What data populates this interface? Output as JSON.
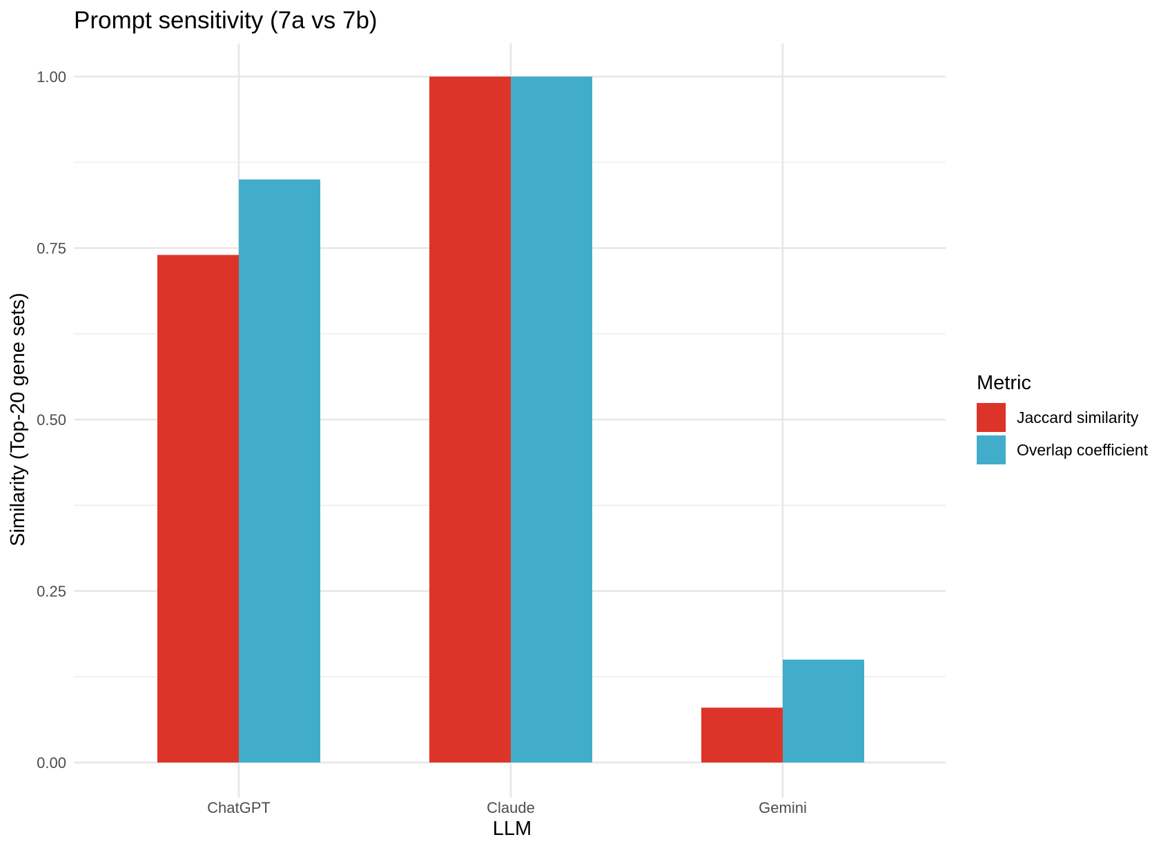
{
  "chart_data": {
    "type": "bar",
    "title": "Prompt sensitivity (7a vs 7b)",
    "xlabel": "LLM",
    "ylabel": "Similarity (Top-20 gene sets)",
    "categories": [
      "ChatGPT",
      "Claude",
      "Gemini"
    ],
    "series": [
      {
        "name": "Jaccard similarity",
        "color": "#dd3429",
        "values": [
          0.74,
          1.0,
          0.08
        ]
      },
      {
        "name": "Overlap coefficient",
        "color": "#42adcb",
        "values": [
          0.85,
          1.0,
          0.15
        ]
      }
    ],
    "ylim": [
      0,
      1.0
    ],
    "yticks": [
      "0.00",
      "0.25",
      "0.50",
      "0.75",
      "1.00"
    ],
    "grid": true,
    "legend": {
      "title": "Metric",
      "position": "right"
    }
  }
}
